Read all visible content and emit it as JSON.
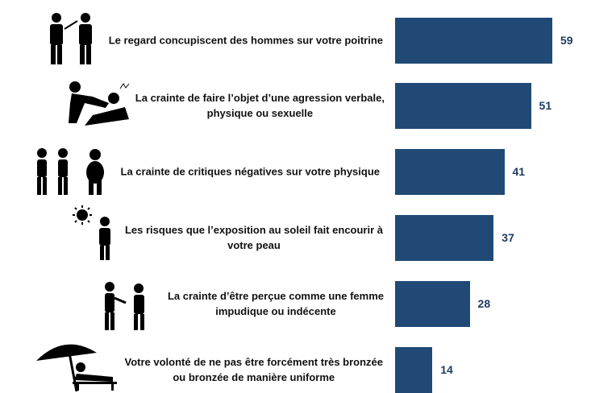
{
  "chart_data": {
    "type": "bar",
    "orientation": "horizontal",
    "title": "",
    "xlabel": "",
    "ylabel": "",
    "xlim": [
      0,
      65
    ],
    "grid": false,
    "bar_color": "#204a75",
    "label_color": "#1f3b63",
    "categories": [
      "Le regard concupiscent des hommes sur votre poitrine",
      "La crainte de faire l’objet d’une agression verbale, physique ou sexuelle",
      "La crainte de critiques négatives sur votre physique",
      "Les risques que l’exposition au soleil fait encourir à votre peau",
      "La crainte d’être perçue comme une femme impudique ou indécente",
      "Votre volonté de ne pas être forcément très bronzée ou bronzée de manière uniforme"
    ],
    "label_lines": [
      [
        "Le regard concupiscent des hommes sur votre poitrine"
      ],
      [
        "La crainte de faire l’objet d’une agression verbale,",
        "physique ou sexuelle"
      ],
      [
        "La crainte de critiques négatives sur votre physique"
      ],
      [
        "Les risques que l’exposition au soleil fait encourir à",
        "votre peau"
      ],
      [
        "La crainte d’être perçue comme une femme",
        "impudique ou indécente"
      ],
      [
        "Votre volonté de ne pas être forcément très bronzée",
        "ou bronzée de manière uniforme"
      ]
    ],
    "values": [
      59,
      51,
      41,
      37,
      28,
      14
    ],
    "icons": [
      "men-staring-icon",
      "assault-icon",
      "mocking-people-icon",
      "sun-exposure-icon",
      "judging-people-icon",
      "beach-lounger-icon"
    ]
  }
}
